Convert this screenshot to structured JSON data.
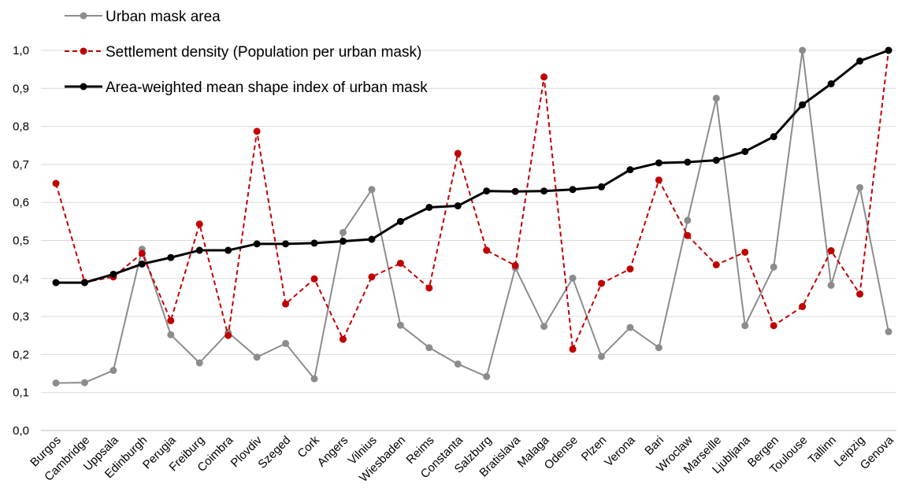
{
  "chart_data": {
    "type": "line",
    "categories": [
      "Burgos",
      "Cambridge",
      "Uppsala",
      "Edinburgh",
      "Perugia",
      "Freiburg",
      "Coimbra",
      "Plovdiv",
      "Szeged",
      "Cork",
      "Angers",
      "Vilnius",
      "Wiesbaden",
      "Reims",
      "Constanta",
      "Salzburg",
      "Bratislava",
      "Malaga",
      "Odense",
      "Plzen",
      "Verona",
      "Bari",
      "Wroclaw",
      "Marseille",
      "Ljubljana",
      "Bergen",
      "Toulouse",
      "Tallinn",
      "Leipzig",
      "Genova"
    ],
    "y_ticks": [
      "0,0",
      "0,1",
      "0,2",
      "0,3",
      "0,4",
      "0,5",
      "0,6",
      "0,7",
      "0,8",
      "0,9",
      "1,0"
    ],
    "ylim": [
      0,
      1
    ],
    "grid": true,
    "legend_position": "top-left",
    "series": [
      {
        "name": "Urban mask area",
        "color": "#8c8c8c",
        "dash": "solid",
        "values": [
          0.125,
          0.126,
          0.158,
          0.477,
          0.252,
          0.178,
          0.258,
          0.193,
          0.229,
          0.136,
          0.521,
          0.634,
          0.277,
          0.218,
          0.175,
          0.142,
          0.428,
          0.274,
          0.401,
          0.195,
          0.271,
          0.218,
          0.553,
          0.874,
          0.276,
          0.43,
          1.0,
          0.382,
          0.639,
          0.26
        ]
      },
      {
        "name": "Settlement density (Population per urban mask)",
        "color": "#c00000",
        "dash": "dashed",
        "values": [
          0.65,
          0.39,
          0.404,
          0.466,
          0.289,
          0.543,
          0.25,
          0.787,
          0.333,
          0.399,
          0.24,
          0.404,
          0.44,
          0.375,
          0.729,
          0.474,
          0.434,
          0.93,
          0.214,
          0.387,
          0.425,
          0.659,
          0.513,
          0.436,
          0.469,
          0.276,
          0.326,
          0.473,
          0.359,
          1.0
        ]
      },
      {
        "name": "Area-weighted mean shape index of urban mask",
        "color": "#000000",
        "dash": "solid",
        "values": [
          0.389,
          0.389,
          0.411,
          0.438,
          0.455,
          0.474,
          0.474,
          0.491,
          0.491,
          0.493,
          0.498,
          0.503,
          0.55,
          0.587,
          0.591,
          0.63,
          0.629,
          0.63,
          0.634,
          0.641,
          0.686,
          0.704,
          0.706,
          0.711,
          0.734,
          0.773,
          0.857,
          0.912,
          0.972,
          1.0
        ]
      }
    ]
  }
}
